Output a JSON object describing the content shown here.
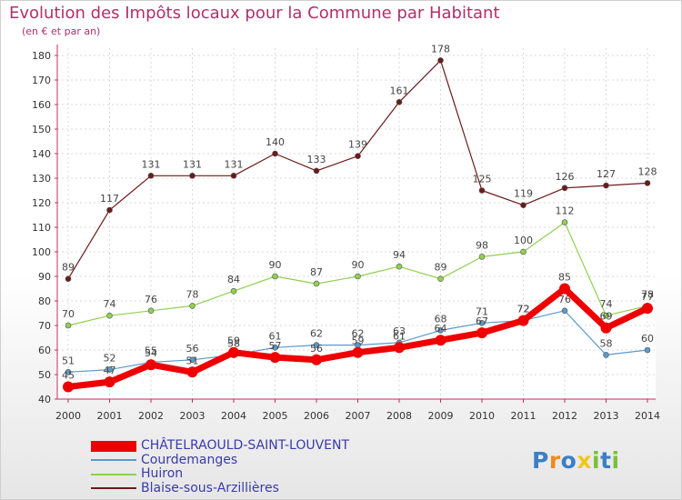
{
  "title": "Evolution des Impôts locaux pour la Commune par Habitant",
  "subtitle": "(en € et par an)",
  "logo": {
    "letters": [
      "P",
      "r",
      "o",
      "x",
      "i",
      "t",
      "i"
    ]
  },
  "chart_data": {
    "type": "line",
    "title": "Evolution des Impôts locaux pour la Commune par Habitant",
    "ylabel": "(en € et par an)",
    "xlabel": "",
    "x": [
      "2000",
      "2001",
      "2002",
      "2003",
      "2004",
      "2005",
      "2006",
      "2007",
      "2008",
      "2009",
      "2010",
      "2011",
      "2012",
      "2013",
      "2014"
    ],
    "ylim": [
      40,
      180
    ],
    "yticks": [
      40,
      50,
      60,
      70,
      80,
      90,
      100,
      110,
      120,
      130,
      140,
      150,
      160,
      170,
      180
    ],
    "grid": true,
    "legend_position": "bottom-left",
    "series": [
      {
        "name": "Blaise-sous-Arzillières",
        "color": "#6b1a1a",
        "width": 1.2,
        "marker": 3,
        "values": [
          89,
          117,
          131,
          131,
          131,
          140,
          133,
          139,
          161,
          178,
          125,
          119,
          126,
          127,
          128
        ]
      },
      {
        "name": "Huiron",
        "color": "#90d050",
        "width": 1.2,
        "marker": 3,
        "values": [
          70,
          74,
          76,
          78,
          84,
          90,
          87,
          90,
          94,
          89,
          98,
          100,
          112,
          74,
          78
        ]
      },
      {
        "name": "Courdemanges",
        "color": "#5a9acc",
        "width": 1.2,
        "marker": 3,
        "values": [
          51,
          52,
          55,
          56,
          58,
          61,
          62,
          62,
          63,
          68,
          71,
          72,
          76,
          58,
          60
        ]
      },
      {
        "name": "CHÂTELRAOULD-SAINT-LOUVENT",
        "color": "#ee0000",
        "width": 7,
        "marker": 6,
        "values": [
          45,
          47,
          54,
          51,
          59,
          57,
          56,
          59,
          61,
          64,
          67,
          72,
          85,
          69,
          77
        ]
      }
    ],
    "legend_order": [
      "CHÂTELRAOULD-SAINT-LOUVENT",
      "Courdemanges",
      "Huiron",
      "Blaise-sous-Arzillières"
    ]
  }
}
